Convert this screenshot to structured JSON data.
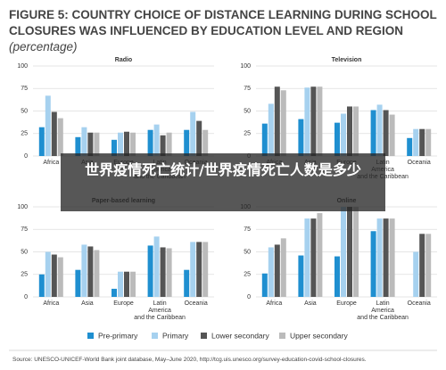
{
  "title": "FIGURE 5: COUNTRY CHOICE OF DISTANCE LEARNING DURING SCHOOL CLOSURES WAS INFLUENCED BY EDUCATION LEVEL AND REGION",
  "title_unit": "(percentage)",
  "overlay": "世界疫情死亡统计/世界疫情死亡人数是多少",
  "source": "Source: UNESCO-UNICEF-World Bank joint database, May–June 2020, http://tcg.uis.unesco.org/survey-education-covid-school-closures.",
  "chart_data": [
    {
      "type": "bar",
      "title": "Radio",
      "categories": [
        "Africa",
        "Asia",
        "Europe",
        "Latin\nAmerica\nand the Caribbean",
        "Oceania"
      ],
      "series": [
        {
          "name": "Pre-primary",
          "color": "#1f8fd0",
          "values": [
            32,
            21,
            18,
            29,
            29
          ]
        },
        {
          "name": "Primary",
          "color": "#a6d1ef",
          "values": [
            67,
            32,
            26,
            35,
            49
          ]
        },
        {
          "name": "Lower secondary",
          "color": "#555555",
          "values": [
            49,
            26,
            27,
            23,
            39
          ]
        },
        {
          "name": "Upper secondary",
          "color": "#bbbbbb",
          "values": [
            42,
            26,
            26,
            26,
            29
          ]
        }
      ],
      "ylim": [
        0,
        100
      ],
      "yticks": [
        0,
        25,
        50,
        75,
        100
      ],
      "grid": true
    },
    {
      "type": "bar",
      "title": "Television",
      "categories": [
        "Africa",
        "Asia",
        "Europe",
        "Latin\nAmerica\nand the Caribbean",
        "Oceania"
      ],
      "series": [
        {
          "name": "Pre-primary",
          "color": "#1f8fd0",
          "values": [
            36,
            41,
            37,
            51,
            20
          ]
        },
        {
          "name": "Primary",
          "color": "#a6d1ef",
          "values": [
            58,
            76,
            47,
            57,
            30
          ]
        },
        {
          "name": "Lower secondary",
          "color": "#555555",
          "values": [
            77,
            77,
            55,
            51,
            30
          ]
        },
        {
          "name": "Upper secondary",
          "color": "#bbbbbb",
          "values": [
            73,
            77,
            55,
            46,
            30
          ]
        }
      ],
      "ylim": [
        0,
        100
      ],
      "yticks": [
        0,
        25,
        50,
        75,
        100
      ],
      "grid": true
    },
    {
      "type": "bar",
      "title": "Paper-based learning",
      "categories": [
        "Africa",
        "Asia",
        "Europe",
        "Latin\nAmerica\nand the Caribbean",
        "Oceania"
      ],
      "series": [
        {
          "name": "Pre-primary",
          "color": "#1f8fd0",
          "values": [
            25,
            30,
            9,
            57,
            30
          ]
        },
        {
          "name": "Primary",
          "color": "#a6d1ef",
          "values": [
            50,
            58,
            28,
            67,
            61
          ]
        },
        {
          "name": "Lower secondary",
          "color": "#555555",
          "values": [
            47,
            56,
            28,
            55,
            61
          ]
        },
        {
          "name": "Upper secondary",
          "color": "#bbbbbb",
          "values": [
            44,
            52,
            28,
            54,
            61
          ]
        }
      ],
      "ylim": [
        0,
        100
      ],
      "yticks": [
        0,
        25,
        50,
        75,
        100
      ],
      "grid": true
    },
    {
      "type": "bar",
      "title": "Online",
      "categories": [
        "Africa",
        "Asia",
        "Europe",
        "Latin\nAmerica\nand the Caribbean",
        "Oceania"
      ],
      "series": [
        {
          "name": "Pre-primary",
          "color": "#1f8fd0",
          "values": [
            26,
            46,
            45,
            73,
            null
          ]
        },
        {
          "name": "Primary",
          "color": "#a6d1ef",
          "values": [
            55,
            87,
            100,
            87,
            50
          ]
        },
        {
          "name": "Lower secondary",
          "color": "#555555",
          "values": [
            58,
            87,
            100,
            87,
            70
          ]
        },
        {
          "name": "Upper secondary",
          "color": "#bbbbbb",
          "values": [
            65,
            93,
            100,
            87,
            70
          ]
        }
      ],
      "ylim": [
        0,
        100
      ],
      "yticks": [
        0,
        25,
        50,
        75,
        100
      ],
      "grid": true
    }
  ]
}
